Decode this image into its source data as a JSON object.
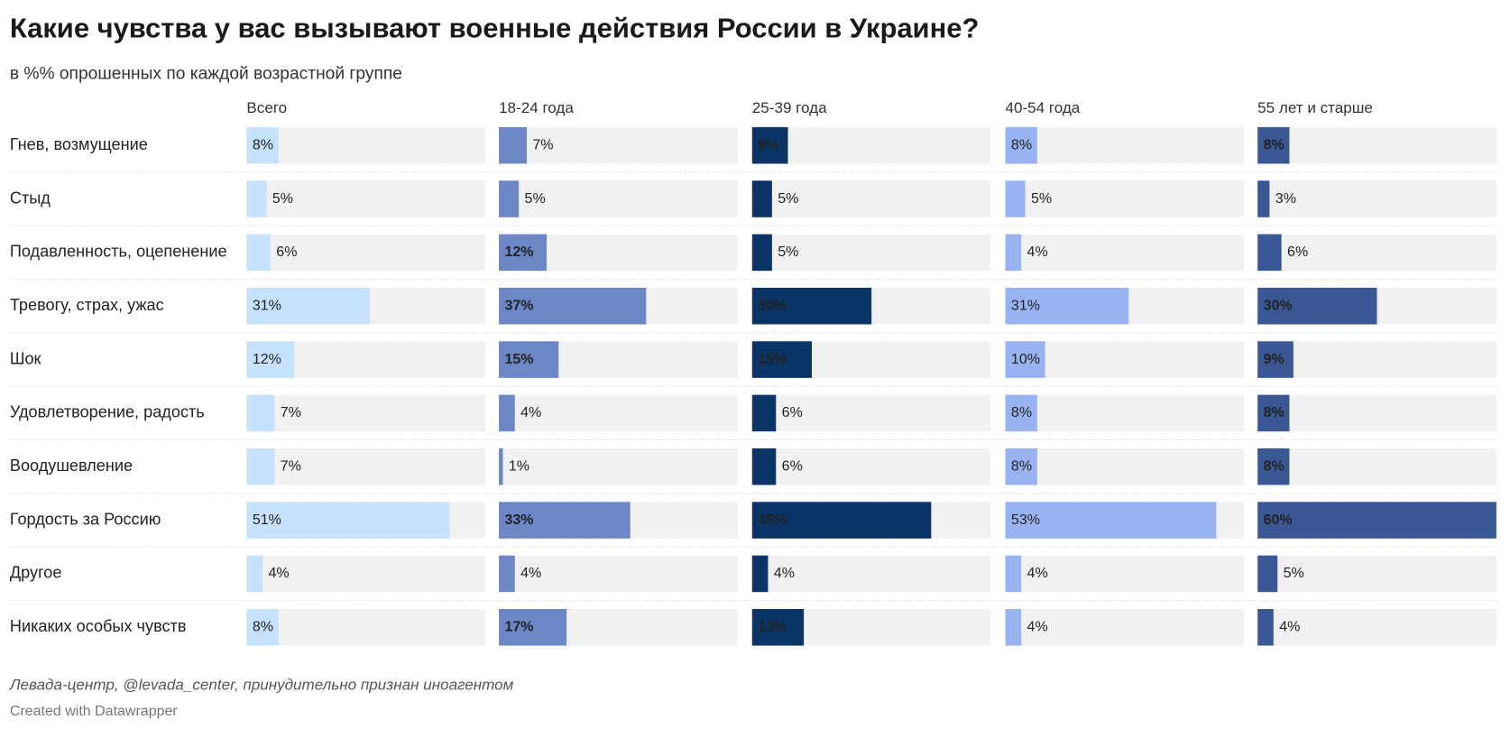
{
  "chart_data": {
    "type": "bar",
    "title": "Какие чувства у вас вызывают военные действия России в Украине?",
    "subtitle": "в %% опрошенных по каждой возрастной группе",
    "source": "Левада-центр, @levada_center, принудительно признан иноагентом",
    "credit": "Created with Datawrapper",
    "categories": [
      "Гнев, возмущение",
      "Стыд",
      "Подавленность, оцепенение",
      "Тревогу, страх, ужас",
      "Шок",
      "Удовлетворение, радость",
      "Воодушевление",
      "Гордость за Россию",
      "Другое",
      "Никаких особых чувств"
    ],
    "xlim": [
      0,
      60
    ],
    "series": [
      {
        "name": "Всего",
        "color": "#c6e1fb",
        "values": [
          8,
          5,
          6,
          31,
          12,
          7,
          7,
          51,
          4,
          8
        ],
        "value_labels": [
          "8%",
          "5%",
          "6%",
          "31%",
          "12%",
          "7%",
          "7%",
          "51%",
          "4%",
          "8%"
        ]
      },
      {
        "name": "18-24 года",
        "color": "#6b87c6",
        "values": [
          7,
          5,
          12,
          37,
          15,
          4,
          1,
          33,
          4,
          17
        ],
        "value_labels": [
          "7%",
          "5%",
          "12%",
          "37%",
          "15%",
          "4%",
          "1%",
          "33%",
          "4%",
          "17%"
        ]
      },
      {
        "name": "25-39 года",
        "color": "#0b3566",
        "values": [
          9,
          5,
          5,
          30,
          15,
          6,
          6,
          45,
          4,
          13
        ],
        "value_labels": [
          "9%",
          "5%",
          "5%",
          "30%",
          "15%",
          "6%",
          "6%",
          "45%",
          "4%",
          "13%"
        ]
      },
      {
        "name": "40-54 года",
        "color": "#98b3ef",
        "values": [
          8,
          5,
          4,
          31,
          10,
          8,
          8,
          53,
          4,
          4
        ],
        "value_labels": [
          "8%",
          "5%",
          "4%",
          "31%",
          "10%",
          "8%",
          "8%",
          "53%",
          "4%",
          "4%"
        ]
      },
      {
        "name": "55 лет и старше",
        "color": "#3a5894",
        "values": [
          8,
          3,
          6,
          30,
          9,
          8,
          8,
          60,
          5,
          4
        ],
        "value_labels": [
          "8%",
          "3%",
          "6%",
          "30%",
          "9%",
          "8%",
          "8%",
          "60%",
          "5%",
          "4%"
        ]
      }
    ]
  }
}
